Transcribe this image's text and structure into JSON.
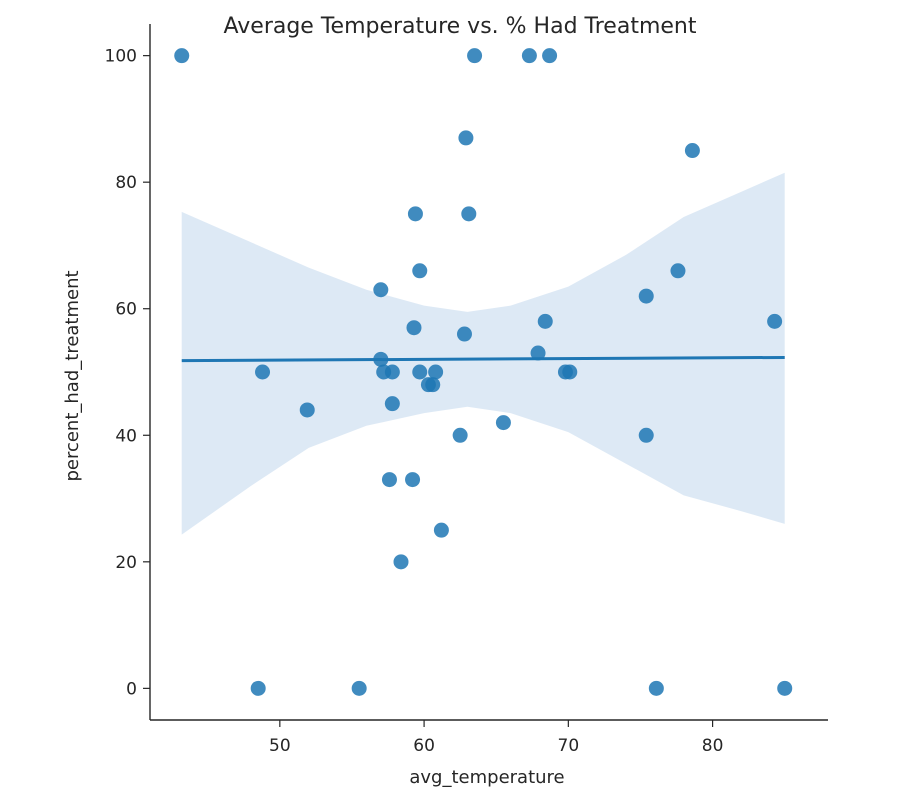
{
  "chart_data": {
    "type": "scatter",
    "title": "Average Temperature vs. % Had Treatment",
    "xlabel": "avg_temperature",
    "ylabel": "percent_had_treatment",
    "xlim": [
      41,
      88
    ],
    "ylim": [
      -5,
      105
    ],
    "xticks": [
      50,
      60,
      70,
      80
    ],
    "yticks": [
      0,
      20,
      40,
      60,
      80,
      100
    ],
    "grid": false,
    "colors": {
      "points": "#1f77b4",
      "regression_line": "#1f77b4",
      "confidence_band": "#c6dbef"
    },
    "points": [
      {
        "x": 43.2,
        "y": 100
      },
      {
        "x": 63.5,
        "y": 100
      },
      {
        "x": 67.3,
        "y": 100
      },
      {
        "x": 68.7,
        "y": 100
      },
      {
        "x": 62.9,
        "y": 87
      },
      {
        "x": 78.6,
        "y": 85
      },
      {
        "x": 59.4,
        "y": 75
      },
      {
        "x": 63.1,
        "y": 75
      },
      {
        "x": 59.7,
        "y": 66
      },
      {
        "x": 77.6,
        "y": 66
      },
      {
        "x": 57.0,
        "y": 63
      },
      {
        "x": 75.4,
        "y": 62
      },
      {
        "x": 68.4,
        "y": 58
      },
      {
        "x": 84.3,
        "y": 58
      },
      {
        "x": 59.3,
        "y": 57
      },
      {
        "x": 62.8,
        "y": 56
      },
      {
        "x": 67.9,
        "y": 53
      },
      {
        "x": 57.0,
        "y": 52
      },
      {
        "x": 48.8,
        "y": 50
      },
      {
        "x": 57.2,
        "y": 50
      },
      {
        "x": 57.8,
        "y": 50
      },
      {
        "x": 59.7,
        "y": 50
      },
      {
        "x": 60.8,
        "y": 50
      },
      {
        "x": 69.8,
        "y": 50
      },
      {
        "x": 70.1,
        "y": 50
      },
      {
        "x": 60.3,
        "y": 48
      },
      {
        "x": 60.6,
        "y": 48
      },
      {
        "x": 57.8,
        "y": 45
      },
      {
        "x": 51.9,
        "y": 44
      },
      {
        "x": 65.5,
        "y": 42
      },
      {
        "x": 62.5,
        "y": 40
      },
      {
        "x": 75.4,
        "y": 40
      },
      {
        "x": 57.6,
        "y": 33
      },
      {
        "x": 59.2,
        "y": 33
      },
      {
        "x": 61.2,
        "y": 25
      },
      {
        "x": 58.4,
        "y": 20
      },
      {
        "x": 48.5,
        "y": 0
      },
      {
        "x": 55.5,
        "y": 0
      },
      {
        "x": 76.1,
        "y": 0
      },
      {
        "x": 85.0,
        "y": 0
      }
    ],
    "regression_line": {
      "x": [
        43.2,
        85.0
      ],
      "y": [
        51.8,
        52.3
      ]
    },
    "confidence_band": {
      "x": [
        43.2,
        48,
        52,
        56,
        60,
        63,
        66,
        70,
        74,
        78,
        82,
        85.0
      ],
      "upper": [
        75.3,
        70.5,
        66.5,
        63,
        60.5,
        59.5,
        60.5,
        63.5,
        68.5,
        74.5,
        78.5,
        81.5
      ],
      "lower": [
        24.3,
        32,
        38,
        41.5,
        43.5,
        44.5,
        43.5,
        40.5,
        35.5,
        30.5,
        28,
        26
      ]
    }
  }
}
